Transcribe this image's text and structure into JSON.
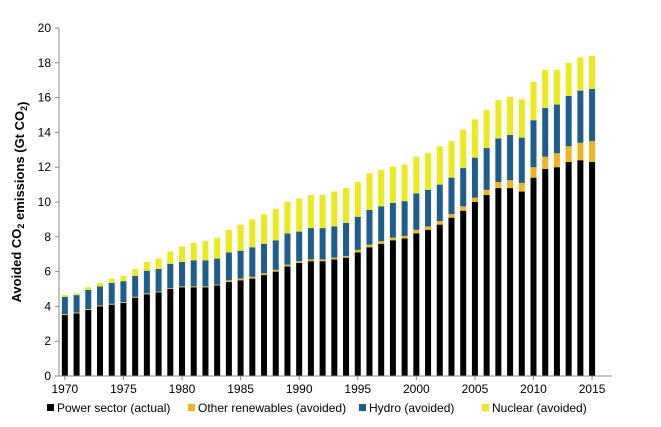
{
  "chart_data": {
    "type": "bar",
    "stacked": true,
    "ylabel": {
      "parts": [
        {
          "text": "Avoided CO",
          "sub": false
        },
        {
          "text": "2",
          "sub": true
        },
        {
          "text": " emissions (Gt CO",
          "sub": false
        },
        {
          "text": "2",
          "sub": true
        },
        {
          "text": ")",
          "sub": false
        }
      ]
    },
    "ylim": [
      0,
      20
    ],
    "yticks": [
      0,
      2,
      4,
      6,
      8,
      10,
      12,
      14,
      16,
      18,
      20
    ],
    "xticks": [
      1970,
      1975,
      1980,
      1985,
      1990,
      1995,
      2000,
      2005,
      2010,
      2015
    ],
    "grid": false,
    "legend_position": "bottom",
    "x": [
      1970,
      1971,
      1972,
      1973,
      1974,
      1975,
      1976,
      1977,
      1978,
      1979,
      1980,
      1981,
      1982,
      1983,
      1984,
      1985,
      1986,
      1987,
      1988,
      1989,
      1990,
      1991,
      1992,
      1993,
      1994,
      1995,
      1996,
      1997,
      1998,
      1999,
      2000,
      2001,
      2002,
      2003,
      2004,
      2005,
      2006,
      2007,
      2008,
      2009,
      2010,
      2011,
      2012,
      2013,
      2014,
      2015
    ],
    "series": [
      {
        "name": "Power sector (actual)",
        "color": "#000000",
        "values": [
          3.5,
          3.6,
          3.8,
          4.0,
          4.1,
          4.2,
          4.5,
          4.7,
          4.8,
          5.0,
          5.1,
          5.1,
          5.1,
          5.2,
          5.4,
          5.5,
          5.6,
          5.8,
          6.0,
          6.3,
          6.5,
          6.6,
          6.6,
          6.7,
          6.8,
          7.1,
          7.4,
          7.6,
          7.8,
          7.9,
          8.2,
          8.4,
          8.7,
          9.1,
          9.5,
          10.0,
          10.4,
          10.8,
          10.8,
          10.6,
          11.4,
          11.9,
          12.0,
          12.3,
          12.4,
          12.3
        ]
      },
      {
        "name": "Other renewables (avoided)",
        "color": "#f0b323",
        "values": [
          0.05,
          0.05,
          0.05,
          0.05,
          0.05,
          0.05,
          0.05,
          0.05,
          0.05,
          0.05,
          0.05,
          0.05,
          0.05,
          0.05,
          0.1,
          0.1,
          0.1,
          0.1,
          0.1,
          0.1,
          0.1,
          0.1,
          0.1,
          0.1,
          0.1,
          0.15,
          0.15,
          0.15,
          0.15,
          0.15,
          0.2,
          0.2,
          0.2,
          0.2,
          0.25,
          0.25,
          0.3,
          0.35,
          0.45,
          0.5,
          0.6,
          0.7,
          0.8,
          0.9,
          1.0,
          1.2
        ]
      },
      {
        "name": "Hydro (avoided)",
        "color": "#1f5d8c",
        "values": [
          1.0,
          1.0,
          1.1,
          1.1,
          1.2,
          1.2,
          1.2,
          1.3,
          1.3,
          1.4,
          1.4,
          1.5,
          1.5,
          1.5,
          1.6,
          1.6,
          1.7,
          1.7,
          1.7,
          1.8,
          1.7,
          1.8,
          1.8,
          1.8,
          1.9,
          1.9,
          2.0,
          2.0,
          2.0,
          2.0,
          2.1,
          2.1,
          2.1,
          2.1,
          2.2,
          2.3,
          2.4,
          2.5,
          2.6,
          2.6,
          2.7,
          2.8,
          2.8,
          2.9,
          3.0,
          3.0
        ]
      },
      {
        "name": "Nuclear (avoided)",
        "color": "#eaea1f",
        "values": [
          0.1,
          0.1,
          0.15,
          0.2,
          0.25,
          0.3,
          0.4,
          0.5,
          0.6,
          0.7,
          0.9,
          1.0,
          1.1,
          1.2,
          1.3,
          1.5,
          1.6,
          1.7,
          1.8,
          1.8,
          1.9,
          1.9,
          1.9,
          2.0,
          2.0,
          2.0,
          2.1,
          2.1,
          2.1,
          2.1,
          2.1,
          2.1,
          2.2,
          2.1,
          2.2,
          2.2,
          2.2,
          2.2,
          2.2,
          2.2,
          2.2,
          2.2,
          2.0,
          1.9,
          1.9,
          1.9
        ]
      }
    ]
  }
}
